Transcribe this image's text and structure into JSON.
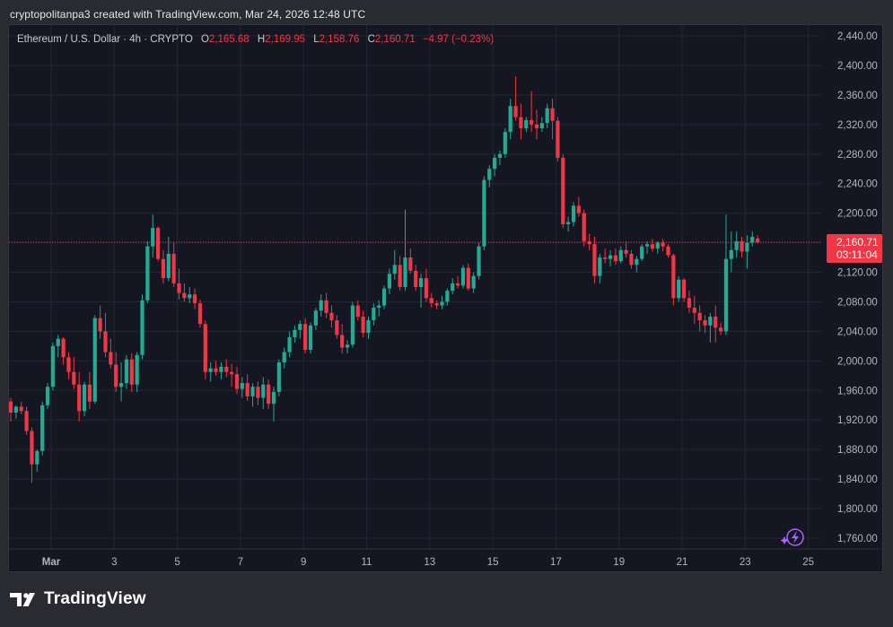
{
  "caption": "cryptopolitanpa3 created with TradingView.com, Mar 24, 2026 12:48 UTC",
  "legend": {
    "symbol": "Ethereum / U.S. Dollar · 4h · CRYPTO",
    "o_label": "O",
    "o_value": "2,165.68",
    "h_label": "H",
    "h_value": "2,169.95",
    "l_label": "L",
    "l_value": "2,158.76",
    "c_label": "C",
    "c_value": "2,160.71",
    "change": "−4.97 (−0.23%)"
  },
  "price_tag": {
    "price": "2,160.71",
    "countdown": "03:11:04"
  },
  "logo": {
    "text": "TradingView"
  },
  "colors": {
    "up": "#22ab94",
    "down": "#f23645",
    "background": "#141722",
    "grid": "#232632",
    "text": "#b2b5be",
    "accent_icon": "#b061ff"
  },
  "chart_data": {
    "type": "candlestick",
    "title": "Ethereum / U.S. Dollar · 4h · CRYPTO",
    "interval": "4h",
    "ylim": [
      1740,
      2460
    ],
    "y_ticks": [
      "2,440.00",
      "2,400.00",
      "2,360.00",
      "2,320.00",
      "2,280.00",
      "2,240.00",
      "2,200.00",
      "2,160.00",
      "2,120.00",
      "2,080.00",
      "2,040.00",
      "2,000.00",
      "1,960.00",
      "1,920.00",
      "1,880.00",
      "1,840.00",
      "1,800.00",
      "1,760.00"
    ],
    "x_ticks": [
      "Mar",
      "3",
      "5",
      "7",
      "9",
      "11",
      "13",
      "15",
      "17",
      "19",
      "21",
      "23",
      "25"
    ],
    "last_price": 2160.71,
    "series": [
      {
        "name": "Ethereum / U.S. Dollar",
        "ohlc": [
          [
            1945,
            1950,
            1918,
            1930
          ],
          [
            1930,
            1940,
            1922,
            1938
          ],
          [
            1938,
            1945,
            1928,
            1932
          ],
          [
            1932,
            1938,
            1900,
            1905
          ],
          [
            1905,
            1910,
            1835,
            1860
          ],
          [
            1860,
            1880,
            1850,
            1878
          ],
          [
            1878,
            1945,
            1872,
            1940
          ],
          [
            1940,
            1970,
            1935,
            1965
          ],
          [
            1965,
            2025,
            1960,
            2020
          ],
          [
            2020,
            2035,
            2005,
            2030
          ],
          [
            2030,
            2032,
            1995,
            2005
          ],
          [
            2005,
            2012,
            1975,
            1985
          ],
          [
            1985,
            2005,
            1962,
            1968
          ],
          [
            1968,
            1985,
            1918,
            1932
          ],
          [
            1932,
            1972,
            1925,
            1968
          ],
          [
            1968,
            1985,
            1935,
            1945
          ],
          [
            1945,
            2062,
            1942,
            2058
          ],
          [
            2058,
            2075,
            2030,
            2040
          ],
          [
            2040,
            2065,
            2005,
            2012
          ],
          [
            2012,
            2030,
            1990,
            1995
          ],
          [
            1995,
            2012,
            1958,
            1965
          ],
          [
            1965,
            1998,
            1945,
            1970
          ],
          [
            1970,
            2008,
            1962,
            2002
          ],
          [
            2002,
            2010,
            1958,
            1968
          ],
          [
            1968,
            2012,
            1958,
            2008
          ],
          [
            2008,
            2090,
            2002,
            2082
          ],
          [
            2082,
            2162,
            2078,
            2155
          ],
          [
            2155,
            2198,
            2140,
            2180
          ],
          [
            2180,
            2182,
            2135,
            2138
          ],
          [
            2138,
            2150,
            2105,
            2112
          ],
          [
            2112,
            2168,
            2108,
            2145
          ],
          [
            2145,
            2160,
            2100,
            2105
          ],
          [
            2105,
            2125,
            2083,
            2092
          ],
          [
            2092,
            2105,
            2080,
            2085
          ],
          [
            2085,
            2100,
            2078,
            2090
          ],
          [
            2090,
            2098,
            2070,
            2078
          ],
          [
            2078,
            2083,
            2045,
            2050
          ],
          [
            2050,
            2055,
            1975,
            1985
          ],
          [
            1985,
            1998,
            1972,
            1990
          ],
          [
            1990,
            2000,
            1980,
            1985
          ],
          [
            1985,
            1998,
            1975,
            1992
          ],
          [
            1992,
            2002,
            1978,
            1985
          ],
          [
            1985,
            1996,
            1965,
            1982
          ],
          [
            1982,
            1992,
            1955,
            1962
          ],
          [
            1962,
            1978,
            1950,
            1970
          ],
          [
            1970,
            1982,
            1946,
            1952
          ],
          [
            1952,
            1970,
            1938,
            1965
          ],
          [
            1965,
            1972,
            1940,
            1950
          ],
          [
            1950,
            1978,
            1935,
            1968
          ],
          [
            1968,
            1975,
            1935,
            1942
          ],
          [
            1942,
            1965,
            1918,
            1958
          ],
          [
            1958,
            2002,
            1952,
            1998
          ],
          [
            1998,
            2018,
            1990,
            2012
          ],
          [
            2012,
            2040,
            2005,
            2032
          ],
          [
            2032,
            2048,
            2025,
            2042
          ],
          [
            2042,
            2055,
            2030,
            2050
          ],
          [
            2050,
            2058,
            2010,
            2015
          ],
          [
            2015,
            2052,
            2010,
            2048
          ],
          [
            2048,
            2072,
            2042,
            2068
          ],
          [
            2068,
            2090,
            2060,
            2082
          ],
          [
            2082,
            2092,
            2058,
            2065
          ],
          [
            2065,
            2075,
            2045,
            2055
          ],
          [
            2055,
            2062,
            2030,
            2035
          ],
          [
            2035,
            2050,
            2010,
            2018
          ],
          [
            2018,
            2028,
            2010,
            2022
          ],
          [
            2022,
            2080,
            2018,
            2075
          ],
          [
            2075,
            2082,
            2055,
            2060
          ],
          [
            2060,
            2068,
            2032,
            2038
          ],
          [
            2038,
            2060,
            2030,
            2055
          ],
          [
            2055,
            2078,
            2048,
            2072
          ],
          [
            2072,
            2082,
            2060,
            2075
          ],
          [
            2075,
            2102,
            2070,
            2098
          ],
          [
            2098,
            2125,
            2090,
            2118
          ],
          [
            2118,
            2150,
            2110,
            2130
          ],
          [
            2130,
            2142,
            2095,
            2100
          ],
          [
            2100,
            2205,
            2095,
            2140
          ],
          [
            2140,
            2152,
            2118,
            2122
          ],
          [
            2122,
            2130,
            2095,
            2100
          ],
          [
            2100,
            2118,
            2072,
            2112
          ],
          [
            2112,
            2125,
            2080,
            2085
          ],
          [
            2085,
            2092,
            2072,
            2078
          ],
          [
            2078,
            2082,
            2070,
            2075
          ],
          [
            2075,
            2088,
            2070,
            2080
          ],
          [
            2080,
            2098,
            2075,
            2095
          ],
          [
            2095,
            2112,
            2090,
            2105
          ],
          [
            2105,
            2115,
            2098,
            2102
          ],
          [
            2102,
            2130,
            2098,
            2126
          ],
          [
            2126,
            2132,
            2095,
            2098
          ],
          [
            2098,
            2120,
            2092,
            2115
          ],
          [
            2115,
            2160,
            2110,
            2155
          ],
          [
            2155,
            2250,
            2150,
            2245
          ],
          [
            2245,
            2265,
            2235,
            2260
          ],
          [
            2260,
            2280,
            2250,
            2275
          ],
          [
            2275,
            2285,
            2265,
            2280
          ],
          [
            2280,
            2315,
            2275,
            2310
          ],
          [
            2310,
            2355,
            2300,
            2345
          ],
          [
            2345,
            2385,
            2325,
            2330
          ],
          [
            2330,
            2348,
            2300,
            2315
          ],
          [
            2315,
            2330,
            2310,
            2326
          ],
          [
            2326,
            2365,
            2310,
            2320
          ],
          [
            2320,
            2340,
            2300,
            2315
          ],
          [
            2315,
            2330,
            2310,
            2322
          ],
          [
            2322,
            2348,
            2315,
            2342
          ],
          [
            2342,
            2355,
            2300,
            2325
          ],
          [
            2325,
            2330,
            2270,
            2275
          ],
          [
            2275,
            2280,
            2180,
            2185
          ],
          [
            2185,
            2195,
            2175,
            2188
          ],
          [
            2188,
            2215,
            2182,
            2210
          ],
          [
            2210,
            2222,
            2195,
            2200
          ],
          [
            2200,
            2205,
            2155,
            2162
          ],
          [
            2162,
            2172,
            2150,
            2158
          ],
          [
            2158,
            2168,
            2105,
            2115
          ],
          [
            2115,
            2145,
            2105,
            2140
          ],
          [
            2140,
            2152,
            2132,
            2138
          ],
          [
            2138,
            2150,
            2128,
            2143
          ],
          [
            2143,
            2152,
            2130,
            2135
          ],
          [
            2135,
            2155,
            2132,
            2150
          ],
          [
            2150,
            2162,
            2140,
            2145
          ],
          [
            2145,
            2150,
            2125,
            2130
          ],
          [
            2130,
            2142,
            2120,
            2138
          ],
          [
            2138,
            2158,
            2135,
            2155
          ],
          [
            2155,
            2162,
            2145,
            2158
          ],
          [
            2158,
            2165,
            2148,
            2152
          ],
          [
            2152,
            2162,
            2145,
            2160
          ],
          [
            2160,
            2165,
            2148,
            2155
          ],
          [
            2155,
            2158,
            2140,
            2143
          ],
          [
            2143,
            2145,
            2075,
            2085
          ],
          [
            2085,
            2115,
            2080,
            2110
          ],
          [
            2110,
            2112,
            2080,
            2085
          ],
          [
            2085,
            2095,
            2065,
            2072
          ],
          [
            2072,
            2088,
            2050,
            2065
          ],
          [
            2065,
            2075,
            2040,
            2055
          ],
          [
            2055,
            2062,
            2038,
            2048
          ],
          [
            2048,
            2065,
            2025,
            2060
          ],
          [
            2060,
            2075,
            2025,
            2045
          ],
          [
            2045,
            2052,
            2035,
            2040
          ],
          [
            2040,
            2198,
            2035,
            2138
          ],
          [
            2138,
            2175,
            2120,
            2150
          ],
          [
            2150,
            2175,
            2140,
            2162
          ],
          [
            2162,
            2168,
            2140,
            2148
          ],
          [
            2148,
            2170,
            2125,
            2160
          ],
          [
            2160,
            2175,
            2155,
            2168
          ],
          [
            2165.68,
            2169.95,
            2158.76,
            2160.71
          ]
        ]
      }
    ]
  }
}
